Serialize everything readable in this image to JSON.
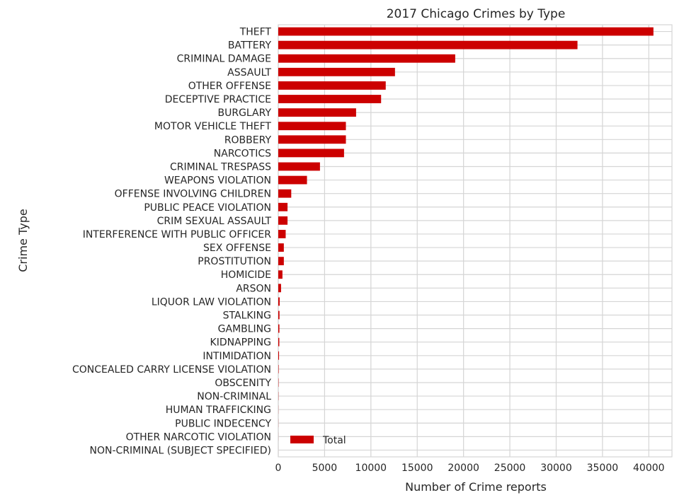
{
  "chart_data": {
    "type": "bar",
    "orientation": "horizontal",
    "title": "2017 Chicago Crimes by Type",
    "xlabel": "Number of Crime reports",
    "ylabel": "Crime Type",
    "xlim": [
      0,
      42500
    ],
    "xticks": [
      0,
      5000,
      10000,
      15000,
      20000,
      25000,
      30000,
      35000,
      40000
    ],
    "grid": true,
    "legend_position": "lower-left",
    "bar_color": "#cc0000",
    "series": [
      {
        "name": "Total",
        "categories": [
          "THEFT",
          "BATTERY",
          "CRIMINAL DAMAGE",
          "ASSAULT",
          "OTHER OFFENSE",
          "DECEPTIVE PRACTICE",
          "BURGLARY",
          "MOTOR VEHICLE THEFT",
          "ROBBERY",
          "NARCOTICS",
          "CRIMINAL TRESPASS",
          "WEAPONS VIOLATION",
          "OFFENSE INVOLVING CHILDREN",
          "PUBLIC PEACE VIOLATION",
          "CRIM SEXUAL ASSAULT",
          "INTERFERENCE WITH PUBLIC OFFICER",
          "SEX OFFENSE",
          "PROSTITUTION",
          "HOMICIDE",
          "ARSON",
          "LIQUOR LAW VIOLATION",
          "STALKING",
          "GAMBLING",
          "KIDNAPPING",
          "INTIMIDATION",
          "CONCEALED CARRY LICENSE VIOLATION",
          "OBSCENITY",
          "NON-CRIMINAL",
          "HUMAN TRAFFICKING",
          "PUBLIC INDECENCY",
          "OTHER NARCOTIC VIOLATION",
          "NON-CRIMINAL (SUBJECT SPECIFIED)"
        ],
        "values": [
          40500,
          32300,
          19100,
          12600,
          11600,
          11100,
          8400,
          7300,
          7300,
          7100,
          4500,
          3100,
          1400,
          1000,
          1000,
          800,
          600,
          600,
          450,
          300,
          150,
          130,
          120,
          110,
          80,
          40,
          30,
          20,
          10,
          8,
          5,
          2
        ]
      }
    ]
  }
}
